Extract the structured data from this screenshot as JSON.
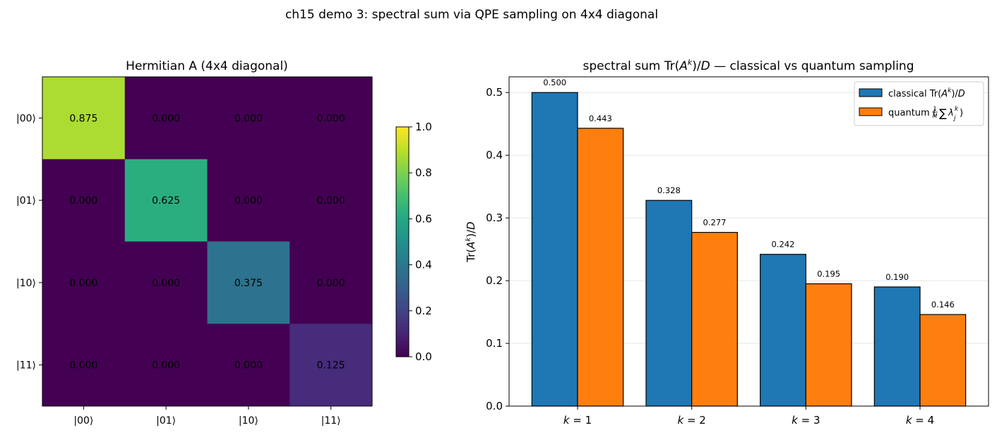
{
  "figure": {
    "suptitle": "ch15 demo 3: spectral sum via QPE sampling on 4x4 diagonal"
  },
  "chart_data": [
    {
      "type": "heatmap",
      "title": "Hermitian A (4x4 diagonal)",
      "row_labels": [
        "|00⟩",
        "|01⟩",
        "|10⟩",
        "|11⟩"
      ],
      "col_labels": [
        "|00⟩",
        "|01⟩",
        "|10⟩",
        "|11⟩"
      ],
      "values": [
        [
          0.875,
          0.0,
          0.0,
          0.0
        ],
        [
          0.0,
          0.625,
          0.0,
          0.0
        ],
        [
          0.0,
          0.0,
          0.375,
          0.0
        ],
        [
          0.0,
          0.0,
          0.0,
          0.125
        ]
      ],
      "cell_labels": [
        [
          "0.875",
          "0.000",
          "0.000",
          "0.000"
        ],
        [
          "0.000",
          "0.625",
          "0.000",
          "0.000"
        ],
        [
          "0.000",
          "0.000",
          "0.375",
          "0.000"
        ],
        [
          "0.000",
          "0.000",
          "0.000",
          "0.125"
        ]
      ],
      "colormap": "viridis",
      "colorbar": {
        "range": [
          0.0,
          1.0
        ],
        "ticks": [
          0.0,
          0.2,
          0.4,
          0.6,
          0.8,
          1.0
        ],
        "tick_labels": [
          "0.0",
          "0.2",
          "0.4",
          "0.6",
          "0.8",
          "1.0"
        ]
      }
    },
    {
      "type": "bar",
      "title_prefix": "spectral sum Tr(",
      "title_base": "A",
      "title_sup": "k",
      "title_suffix": ")/",
      "title_D": "D",
      "title_tail": " — classical vs quantum sampling",
      "ylabel_prefix": "Tr(",
      "ylabel_base": "A",
      "ylabel_sup": "k",
      "ylabel_suffix": ")/",
      "ylabel_D": "D",
      "categories": [
        "k = 1",
        "k = 2",
        "k = 3",
        "k = 4"
      ],
      "category_var": "k",
      "category_eq": " = ",
      "category_nums": [
        "1",
        "2",
        "3",
        "4"
      ],
      "ylim": [
        0.0,
        0.525
      ],
      "yticks": [
        0.0,
        0.1,
        0.2,
        0.3,
        0.4,
        0.5
      ],
      "ytick_labels": [
        "0.0",
        "0.1",
        "0.2",
        "0.3",
        "0.4",
        "0.5"
      ],
      "grid": "y",
      "legend_position": "top-right",
      "series": [
        {
          "name": "classical Tr(A^k)/D",
          "legend_prefix": "classical Tr(",
          "legend_base": "A",
          "legend_sup": "k",
          "legend_suffix": ")/",
          "legend_D": "D",
          "color": "#1f77b4",
          "values": [
            0.5,
            0.328,
            0.242,
            0.19
          ],
          "labels": [
            "0.500",
            "0.328",
            "0.242",
            "0.190"
          ]
        },
        {
          "name": "quantum (1/M Σ λ_j^k)",
          "legend_prefix": "quantum (",
          "legend_frac_num": "1",
          "legend_frac_den": "M",
          "legend_sum": "∑",
          "legend_lambda": "λ",
          "legend_sup": "k",
          "legend_sub": "j",
          "legend_suffix": ")",
          "color": "#ff7f0e",
          "values": [
            0.443,
            0.277,
            0.195,
            0.146
          ],
          "labels": [
            "0.443",
            "0.277",
            "0.195",
            "0.146"
          ]
        }
      ]
    }
  ]
}
